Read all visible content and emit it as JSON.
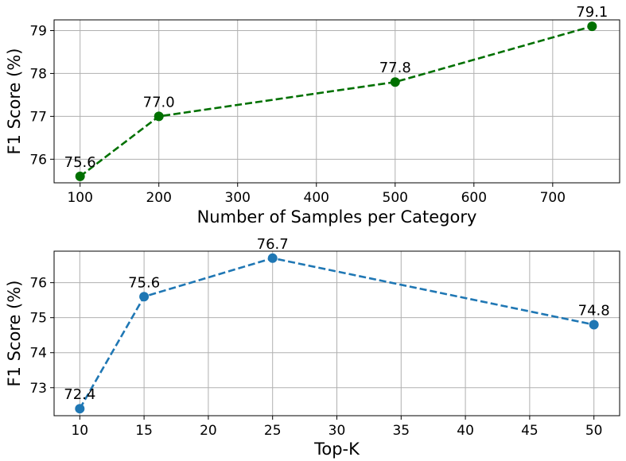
{
  "chart_data": [
    {
      "type": "line",
      "title": "",
      "xlabel": "Number of Samples per Category",
      "ylabel": "F1 Score (%)",
      "x": [
        100,
        200,
        500,
        750
      ],
      "series": [
        {
          "values": [
            75.6,
            77.0,
            77.8,
            79.1
          ],
          "color": "#007000"
        }
      ],
      "data_labels": [
        "75.6",
        "77.0",
        "77.8",
        "79.1"
      ],
      "xlim": [
        67,
        785
      ],
      "ylim": [
        75.45,
        79.25
      ],
      "xticks": [
        100,
        200,
        300,
        400,
        500,
        600,
        700
      ],
      "yticks": [
        76,
        77,
        78,
        79
      ],
      "line_style": "dashed",
      "marker": "circle",
      "grid": true,
      "legend": false
    },
    {
      "type": "line",
      "title": "",
      "xlabel": "Top-K",
      "ylabel": "F1 Score (%)",
      "x": [
        10,
        15,
        25,
        50
      ],
      "series": [
        {
          "values": [
            72.4,
            75.6,
            76.7,
            74.8
          ],
          "color": "#1f77b4"
        }
      ],
      "data_labels": [
        "72.4",
        "75.6",
        "76.7",
        "74.8"
      ],
      "xlim": [
        8,
        52
      ],
      "ylim": [
        72.2,
        76.9
      ],
      "xticks": [
        10,
        15,
        20,
        25,
        30,
        35,
        40,
        45,
        50
      ],
      "yticks": [
        73,
        74,
        75,
        76
      ],
      "line_style": "dashed",
      "marker": "circle",
      "grid": true,
      "legend": false
    }
  ]
}
